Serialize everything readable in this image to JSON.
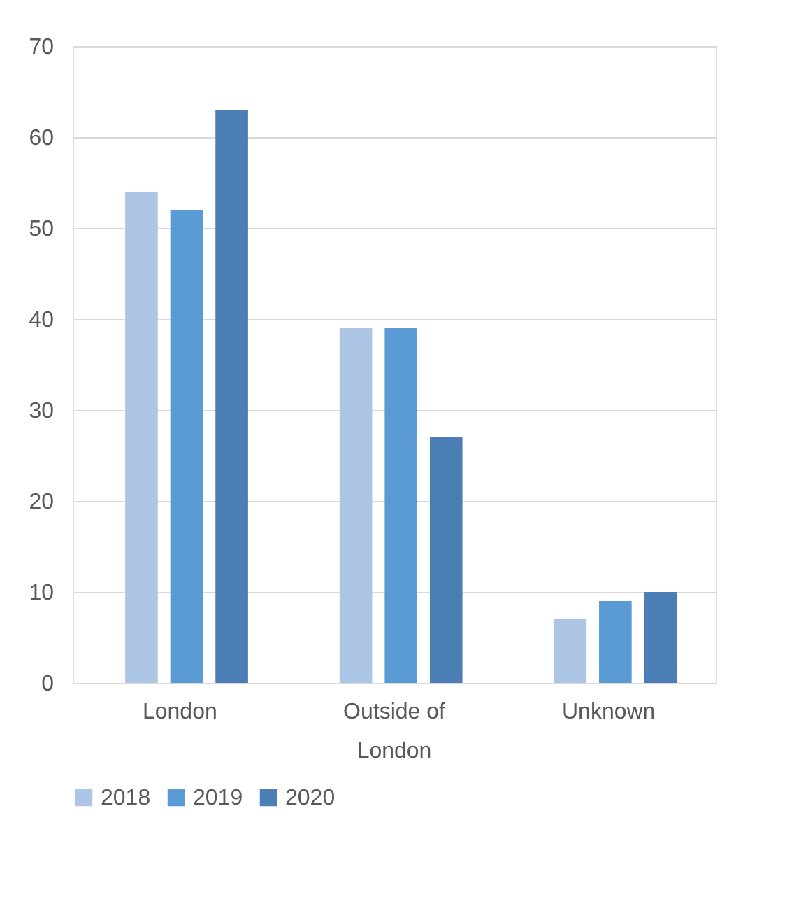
{
  "chart_data": {
    "type": "bar",
    "categories": [
      "London",
      "Outside of London",
      "Unknown"
    ],
    "series": [
      {
        "name": "2018",
        "color": "#adc6e6",
        "values": [
          54,
          39,
          7
        ]
      },
      {
        "name": "2019",
        "color": "#5b9bd5",
        "values": [
          52,
          39,
          9
        ]
      },
      {
        "name": "2020",
        "color": "#4a7eb4",
        "values": [
          63,
          27,
          10
        ]
      }
    ],
    "ylim": [
      0,
      70
    ],
    "yticks": [
      0,
      10,
      20,
      30,
      40,
      50,
      60,
      70
    ],
    "grid": "y",
    "legend": "bottom"
  }
}
